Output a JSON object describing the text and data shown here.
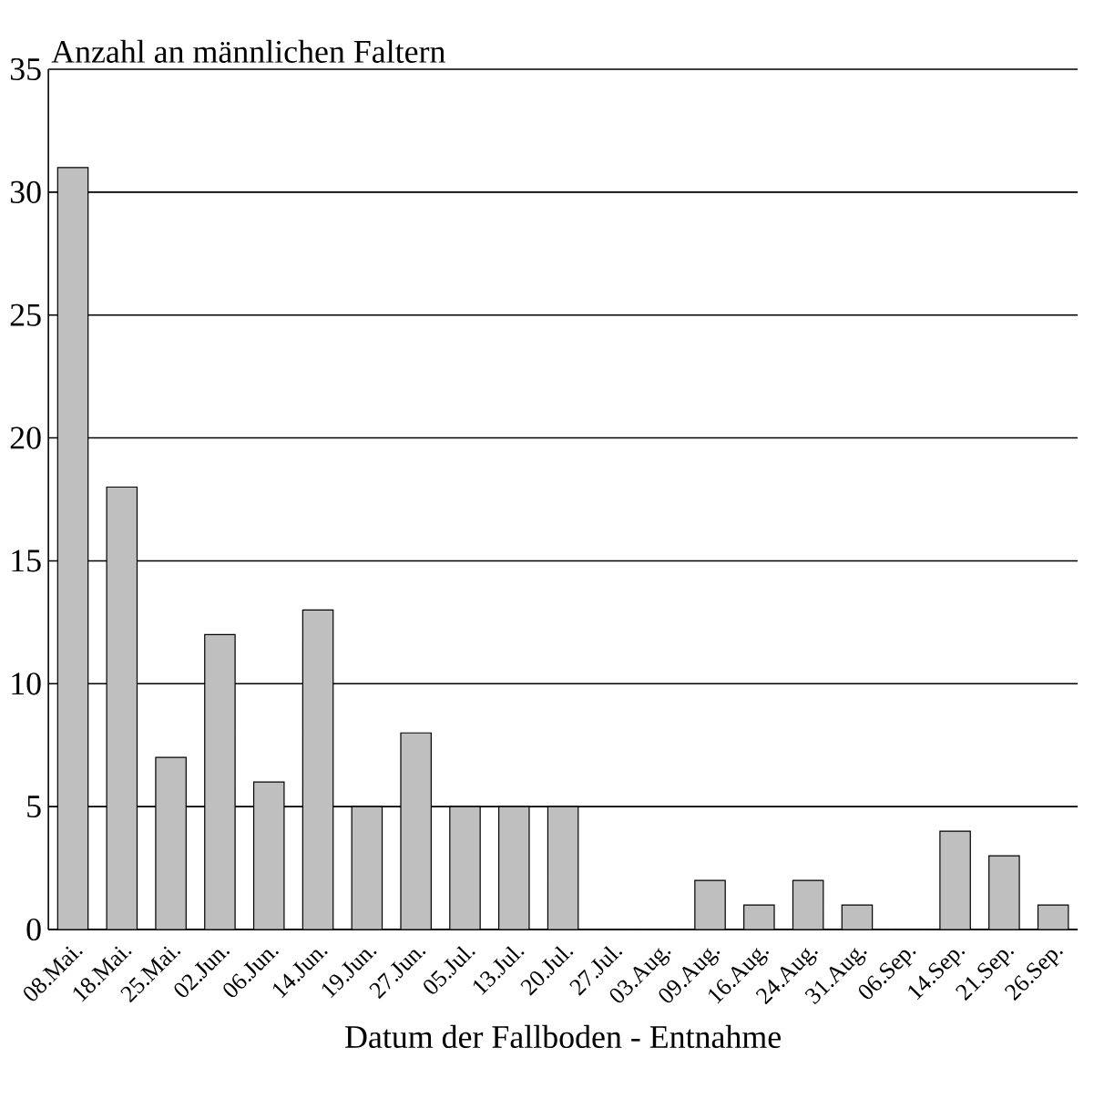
{
  "chart_data": {
    "type": "bar",
    "ylabel": "Anzahl an männlichen Faltern",
    "xlabel": "Datum der Fallboden - Entnahme",
    "categories": [
      "08.Mai.",
      "18.Mai.",
      "25.Mai.",
      "02.Jun.",
      "06.Jun.",
      "14.Jun.",
      "19.Jun.",
      "27.Jun.",
      "05.Jul.",
      "13.Jul.",
      "20.Jul.",
      "27.Jul.",
      "03.Aug.",
      "09.Aug.",
      "16.Aug.",
      "24.Aug.",
      "31.Aug.",
      "06.Sep.",
      "14.Sep.",
      "21.Sep.",
      "26.Sep."
    ],
    "values": [
      31,
      18,
      7,
      12,
      6,
      13,
      5,
      8,
      5,
      5,
      5,
      0,
      0,
      2,
      1,
      2,
      1,
      0,
      4,
      3,
      1
    ],
    "color": "#bfbfbf",
    "ylim": [
      0,
      35
    ],
    "yticks": [
      0,
      5,
      10,
      15,
      20,
      25,
      30,
      35
    ],
    "grid": "y"
  }
}
